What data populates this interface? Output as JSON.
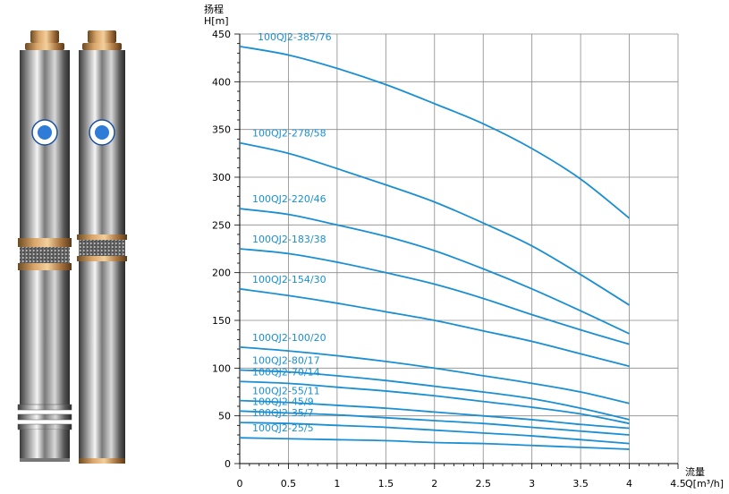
{
  "product_images": [
    {
      "name": "pump-left",
      "icon": "submersible-pump-icon"
    },
    {
      "name": "pump-right",
      "icon": "submersible-pump-icon"
    }
  ],
  "chart_data": {
    "type": "line",
    "ylabel_line1": "扬程",
    "ylabel_line2": "H[m]",
    "xlabel_line1": "流量",
    "xlabel_line2": "Q[m³/h]",
    "xlim": [
      0,
      4.5
    ],
    "ylim": [
      0,
      450
    ],
    "xticks": [
      "0",
      "0.5",
      "1",
      "1.5",
      "2",
      "2.5",
      "3",
      "3.5",
      "4",
      "4.5"
    ],
    "yticks": [
      "0",
      "50",
      "100",
      "150",
      "200",
      "250",
      "300",
      "350",
      "400",
      "450"
    ],
    "grid": true,
    "line_color": "#1a8fd2",
    "x": [
      0,
      0.5,
      1,
      1.5,
      2,
      2.5,
      3,
      3.5,
      4
    ],
    "series": [
      {
        "name": "100QJ2-385/76",
        "values": [
          437,
          428,
          414,
          397,
          377,
          356,
          330,
          298,
          257
        ]
      },
      {
        "name": "100QJ2-278/58",
        "values": [
          336,
          325,
          309,
          292,
          274,
          252,
          228,
          198,
          166
        ]
      },
      {
        "name": "100QJ2-220/46",
        "values": [
          267,
          261,
          250,
          238,
          223,
          204,
          183,
          160,
          136
        ]
      },
      {
        "name": "100QJ2-183/38",
        "values": [
          225,
          220,
          211,
          200,
          188,
          173,
          156,
          140,
          125
        ]
      },
      {
        "name": "100QJ2-154/30",
        "values": [
          183,
          176,
          168,
          159,
          150,
          139,
          128,
          115,
          102
        ]
      },
      {
        "name": "100QJ2-100/20",
        "values": [
          122,
          118,
          113,
          107,
          100,
          92,
          84,
          75,
          63
        ]
      },
      {
        "name": "100QJ2-80/17",
        "values": [
          98,
          96,
          92,
          87,
          81,
          75,
          68,
          58,
          46
        ]
      },
      {
        "name": "100QJ2-70/14",
        "values": [
          86,
          84,
          80,
          76,
          71,
          65,
          59,
          52,
          42
        ]
      },
      {
        "name": "100QJ2-55/11",
        "values": [
          66,
          64,
          61,
          58,
          54,
          50,
          46,
          41,
          37
        ]
      },
      {
        "name": "100QJ2-45/9",
        "values": [
          55,
          53,
          51,
          48,
          45,
          42,
          38,
          34,
          30
        ]
      },
      {
        "name": "100QJ2-35/7",
        "values": [
          43,
          42,
          40,
          38,
          35,
          32,
          29,
          25,
          21
        ]
      },
      {
        "name": "100QJ2-25/5",
        "values": [
          27,
          26,
          25,
          24,
          22,
          21,
          19,
          17,
          15
        ]
      }
    ]
  }
}
